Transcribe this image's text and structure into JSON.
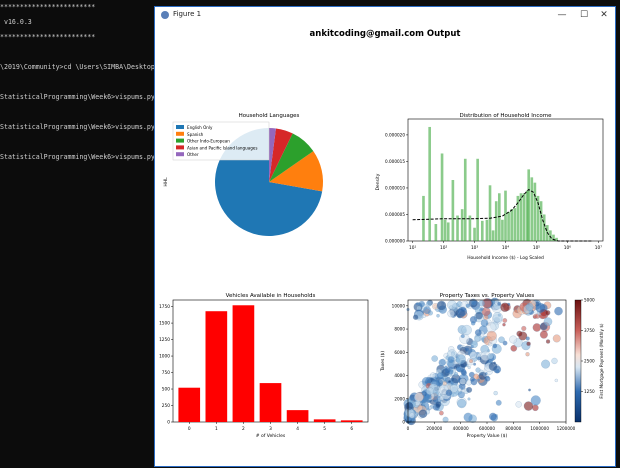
{
  "terminal": {
    "lines": [
      "************************",
      " v16.0.3",
      "************************",
      "",
      "\\2019\\Community>cd \\Users\\SIMBA\\Desktop\\St",
      "",
      "StatisticalProgramming\\Week6>vispums.py",
      "",
      "StatisticalProgramming\\Week6>vispums.py",
      "",
      "StatisticalProgramming\\Week6>vispums.py"
    ]
  },
  "window": {
    "title": "Figure 1",
    "minimize": "—",
    "maximize": "☐",
    "close": "✕"
  },
  "figure": {
    "suptitle": "ankitcoding@gmail.com Output"
  },
  "chart_data": [
    {
      "type": "pie",
      "title": "Household Languages",
      "ylabel": "HHL",
      "legend_position": "upper-left",
      "labels": [
        "English Only",
        "Spanish",
        "Other Indo-European",
        "Asian and Pacific Island languages",
        "Other"
      ],
      "values": [
        70.2,
        12.1,
        7.9,
        5.0,
        2.0
      ],
      "colors": [
        "#1f77b4",
        "#ff7f0e",
        "#2ca02c",
        "#d62728",
        "#9467bd"
      ]
    },
    {
      "type": "area",
      "title": "Distribution of Household Income",
      "xlabel": "Household Income ($) - Log Scaled",
      "ylabel": "Density",
      "xscale": "log",
      "xticks": [
        "10¹",
        "10²",
        "10³",
        "10⁴",
        "10⁵",
        "10⁶",
        "10⁷"
      ],
      "yticks": [
        "0.000000",
        "0.000005",
        "0.000010",
        "0.000015",
        "0.000020"
      ],
      "ylim": [
        0,
        2.3e-05
      ],
      "histogram_color": "#2ca02c",
      "kde_style": "black dashed",
      "histogram_bars": [
        [
          1.35,
          8.5e-06
        ],
        [
          1.55,
          2.15e-05
        ],
        [
          1.75,
          3.2e-06
        ],
        [
          1.95,
          1.65e-05
        ],
        [
          2.05,
          4e-06
        ],
        [
          2.15,
          3.5e-06
        ],
        [
          2.3,
          1.15e-05
        ],
        [
          2.45,
          4.8e-06
        ],
        [
          2.6,
          6e-06
        ],
        [
          2.7,
          1.55e-05
        ],
        [
          2.85,
          4.8e-06
        ],
        [
          3.0,
          2.5e-06
        ],
        [
          3.1,
          1.55e-05
        ],
        [
          3.25,
          3.8e-06
        ],
        [
          3.4,
          4e-06
        ],
        [
          3.5,
          1.05e-05
        ],
        [
          3.6,
          2e-06
        ],
        [
          3.7,
          7.5e-06
        ],
        [
          3.8,
          9e-06
        ],
        [
          3.9,
          4e-06
        ],
        [
          4.0,
          9.5e-06
        ],
        [
          4.1,
          5.5e-06
        ],
        [
          4.2,
          6e-06
        ],
        [
          4.3,
          6.2e-06
        ],
        [
          4.4,
          8.5e-06
        ],
        [
          4.5,
          9e-06
        ],
        [
          4.6,
          9e-06
        ],
        [
          4.7,
          9.5e-06
        ],
        [
          4.75,
          1.35e-05
        ],
        [
          4.85,
          1.2e-05
        ],
        [
          4.95,
          1.1e-05
        ],
        [
          5.05,
          8.5e-06
        ],
        [
          5.15,
          7.5e-06
        ],
        [
          5.25,
          5e-06
        ],
        [
          5.35,
          3e-06
        ],
        [
          5.45,
          2e-06
        ],
        [
          5.55,
          1.2e-06
        ],
        [
          5.65,
          6e-07
        ]
      ],
      "kde_points": [
        [
          1.0,
          4e-06
        ],
        [
          2.0,
          4.2e-06
        ],
        [
          3.0,
          4.2e-06
        ],
        [
          3.5,
          4.3e-06
        ],
        [
          3.9,
          4.7e-06
        ],
        [
          4.2,
          5.8e-06
        ],
        [
          4.4,
          7.2e-06
        ],
        [
          4.6,
          8.8e-06
        ],
        [
          4.75,
          9.7e-06
        ],
        [
          4.9,
          9.2e-06
        ],
        [
          5.05,
          7.2e-06
        ],
        [
          5.2,
          4e-06
        ],
        [
          5.35,
          1.6e-06
        ],
        [
          5.5,
          4e-07
        ],
        [
          5.7,
          0.0
        ],
        [
          6.8,
          0.0
        ]
      ]
    },
    {
      "type": "bar",
      "title": "Vehicles Available in Households",
      "xlabel": "# of Vehicles",
      "categories": [
        "0",
        "1",
        "2",
        "3",
        "4",
        "5",
        "6"
      ],
      "values": [
        520,
        1680,
        1770,
        590,
        180,
        40,
        25
      ],
      "yticks": [
        "0",
        "250",
        "500",
        "750",
        "1000",
        "1250",
        "1500",
        "1750"
      ],
      "ylim": [
        0,
        1850
      ],
      "color": "#ff0000"
    },
    {
      "type": "scatter",
      "title": "Property Taxes vs. Property Values",
      "xlabel": "Property Value ($)",
      "ylabel": "Taxes ($)",
      "colorbar_label": "First Mortgage Payment (Monthly $)",
      "colorbar_ticks": [
        "1250",
        "2500",
        "3750",
        "5000"
      ],
      "xticks": [
        "0",
        "200000",
        "400000",
        "600000",
        "800000",
        "1000000",
        "1200000"
      ],
      "yticks": [
        "0",
        "2000",
        "4000",
        "6000",
        "8000",
        "10000"
      ],
      "xlim": [
        0,
        1200000
      ],
      "ylim": [
        0,
        10500
      ],
      "colormap": "seismic"
    }
  ]
}
